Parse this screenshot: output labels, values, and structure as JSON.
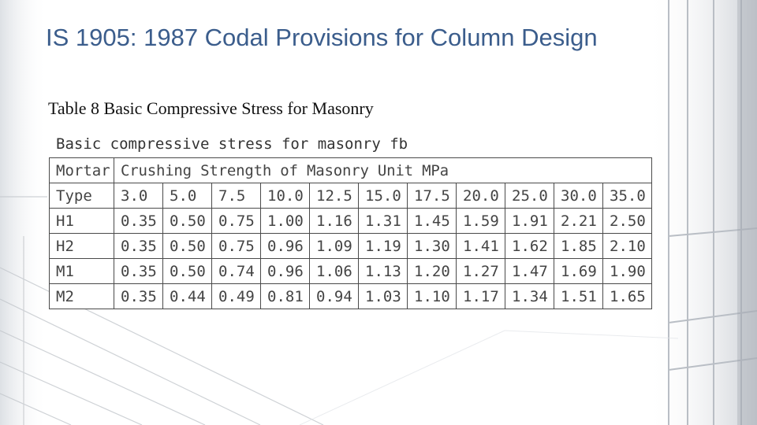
{
  "slide": {
    "title": "IS 1905: 1987 Codal Provisions for Column Design",
    "subtitle": "Table 8 Basic Compressive Stress for Masonry"
  },
  "table": {
    "caption": "Basic compressive stress for masonry fb",
    "header_row1": {
      "mortar": "Mortar",
      "crushing": "Crushing Strength of Masonry Unit MPa"
    },
    "header_row2": {
      "type": "Type",
      "strengths": [
        "3.0",
        "5.0",
        "7.5",
        "10.0",
        "12.5",
        "15.0",
        "17.5",
        "20.0",
        "25.0",
        "30.0",
        "35.0"
      ]
    },
    "rows": [
      {
        "type": "H1",
        "values": [
          "0.35",
          "0.50",
          "0.75",
          "1.00",
          "1.16",
          "1.31",
          "1.45",
          "1.59",
          "1.91",
          "2.21",
          "2.50"
        ]
      },
      {
        "type": "H2",
        "values": [
          "0.35",
          "0.50",
          "0.75",
          "0.96",
          "1.09",
          "1.19",
          "1.30",
          "1.41",
          "1.62",
          "1.85",
          "2.10"
        ]
      },
      {
        "type": "M1",
        "values": [
          "0.35",
          "0.50",
          "0.74",
          "0.96",
          "1.06",
          "1.13",
          "1.20",
          "1.27",
          "1.47",
          "1.69",
          "1.90"
        ]
      },
      {
        "type": "M2",
        "values": [
          "0.35",
          "0.44",
          "0.49",
          "0.81",
          "0.94",
          "1.03",
          "1.10",
          "1.17",
          "1.34",
          "1.51",
          "1.65"
        ]
      }
    ]
  }
}
